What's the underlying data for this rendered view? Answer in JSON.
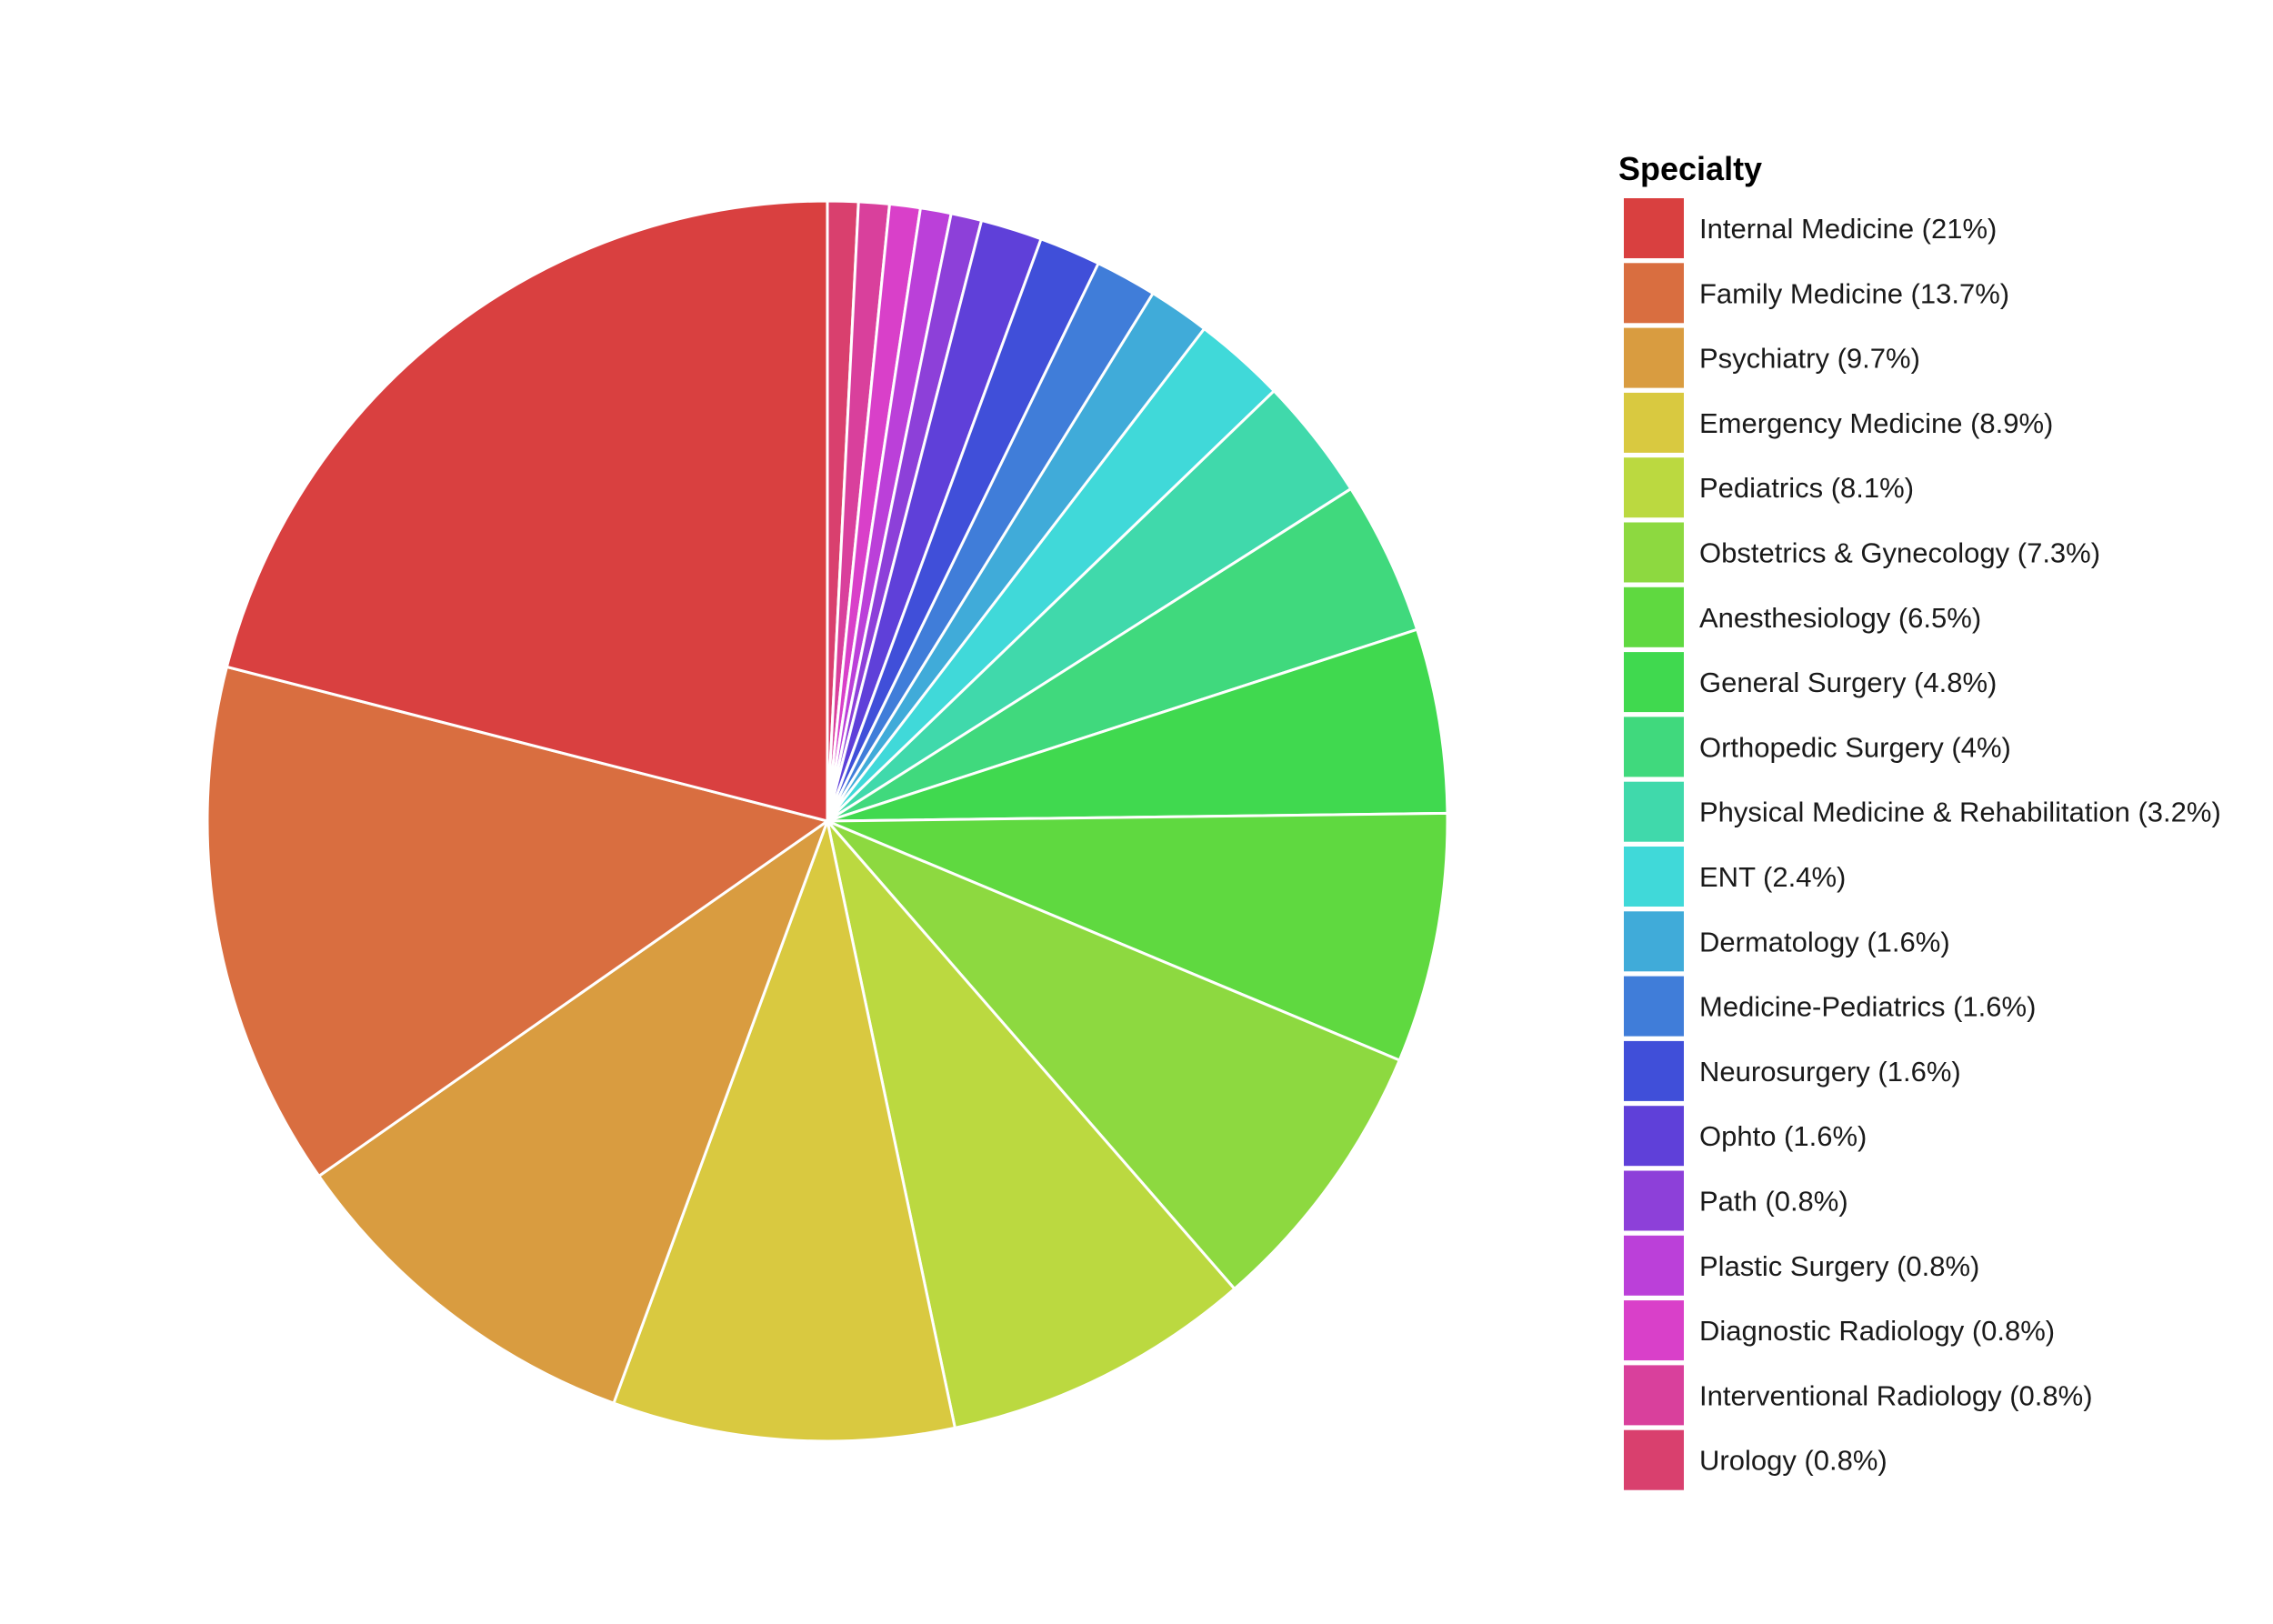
{
  "chart_data": {
    "type": "pie",
    "legend_title": "Specialty",
    "legend_position": "right",
    "start_angle": "12 o'clock",
    "direction": "clockwise",
    "draw_order": "reverse-legend",
    "slice_border_color": "#ffffff",
    "slices": [
      {
        "label": "Internal Medicine (21%)",
        "value": 21.0,
        "color": "#D94040"
      },
      {
        "label": "Family Medicine (13.7%)",
        "value": 13.7,
        "color": "#D96E40"
      },
      {
        "label": "Psychiatry (9.7%)",
        "value": 9.7,
        "color": "#D99C40"
      },
      {
        "label": "Emergency Medicine (8.9%)",
        "value": 8.9,
        "color": "#D9C940"
      },
      {
        "label": "Pediatrics (8.1%)",
        "value": 8.1,
        "color": "#BBD940"
      },
      {
        "label": "Obstetrics & Gynecology (7.3%)",
        "value": 7.3,
        "color": "#8DD940"
      },
      {
        "label": "Anesthesiology (6.5%)",
        "value": 6.5,
        "color": "#5FD940"
      },
      {
        "label": "General Surgery (4.8%)",
        "value": 4.8,
        "color": "#40D94F"
      },
      {
        "label": "Orthopedic Surgery (4%)",
        "value": 4.0,
        "color": "#40D97D"
      },
      {
        "label": "Physical Medicine & Rehabilitation (3.2%)",
        "value": 3.2,
        "color": "#40D9AB"
      },
      {
        "label": "ENT (2.4%)",
        "value": 2.4,
        "color": "#40D9D9"
      },
      {
        "label": "Dermatology (1.6%)",
        "value": 1.6,
        "color": "#40ABD9"
      },
      {
        "label": "Medicine-Pediatrics (1.6%)",
        "value": 1.6,
        "color": "#407DD9"
      },
      {
        "label": "Neurosurgery (1.6%)",
        "value": 1.6,
        "color": "#404FD9"
      },
      {
        "label": "Ophto (1.6%)",
        "value": 1.6,
        "color": "#5F40D9"
      },
      {
        "label": "Path (0.8%)",
        "value": 0.8,
        "color": "#8D40D9"
      },
      {
        "label": "Plastic Surgery (0.8%)",
        "value": 0.8,
        "color": "#BB40D9"
      },
      {
        "label": "Diagnostic Radiology (0.8%)",
        "value": 0.8,
        "color": "#D940C9"
      },
      {
        "label": "Interventional Radiology (0.8%)",
        "value": 0.8,
        "color": "#D9409C"
      },
      {
        "label": "Urology (0.8%)",
        "value": 0.8,
        "color": "#D9406E"
      }
    ]
  }
}
